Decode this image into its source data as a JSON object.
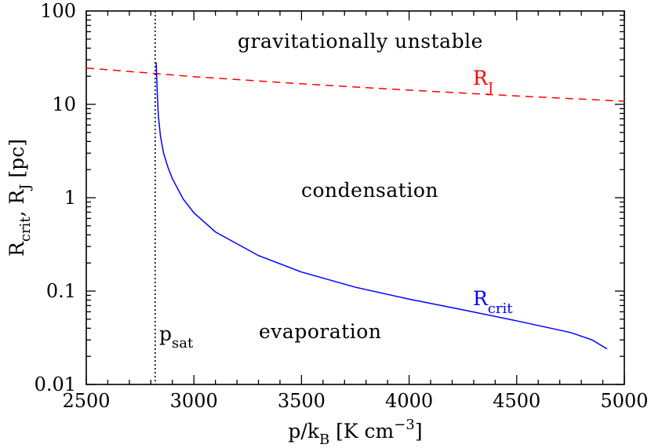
{
  "chart_data": {
    "type": "line",
    "x": {
      "label_main": "p/k",
      "label_sub": "B",
      "label_rest": " [K cm",
      "label_sup": "−3",
      "label_end": "]",
      "min": 2500,
      "max": 5000,
      "scale": "linear",
      "ticks": [
        2500,
        3000,
        3500,
        4000,
        4500,
        5000
      ],
      "tick_labels": [
        "2500",
        "3000",
        "3500",
        "4000",
        "4500",
        "5000"
      ]
    },
    "y": {
      "label_r1": "R",
      "label_r1_sub": "crit",
      "label_mid": ", R",
      "label_r2_sub": "J",
      "label_end": " [pc]",
      "min": 0.01,
      "max": 100,
      "scale": "log",
      "ticks": [
        0.01,
        0.1,
        1,
        10,
        100
      ],
      "tick_labels": [
        "0.01",
        "0.1",
        "1",
        "10",
        "100"
      ]
    },
    "series": [
      {
        "name": "R",
        "name_sub": "J",
        "color": "#ff0000",
        "style": "dashed",
        "x": [
          2500,
          3000,
          3500,
          4000,
          4500,
          5000
        ],
        "y": [
          24.5,
          19.8,
          16.6,
          14.2,
          12.3,
          10.8
        ]
      },
      {
        "name": "R",
        "name_sub": "crit",
        "color": "#0000ff",
        "style": "solid",
        "x": [
          2825,
          2830,
          2835,
          2845,
          2860,
          2880,
          2900,
          2950,
          3000,
          3100,
          3300,
          3500,
          3750,
          4000,
          4250,
          4500,
          4750,
          4850,
          4920
        ],
        "y": [
          28.0,
          13.0,
          7.5,
          4.5,
          2.95,
          2.1,
          1.6,
          0.97,
          0.69,
          0.43,
          0.24,
          0.16,
          0.11,
          0.082,
          0.063,
          0.048,
          0.036,
          0.03,
          0.024
        ]
      }
    ],
    "vline": {
      "label": "p",
      "label_sub": "sat",
      "x": 2820,
      "color": "#000000",
      "style": "dotted"
    },
    "regions": {
      "unstable": "gravitationally unstable",
      "condensation": "condensation",
      "evaporation": "evaporation"
    },
    "grid": false,
    "legend": "none"
  }
}
